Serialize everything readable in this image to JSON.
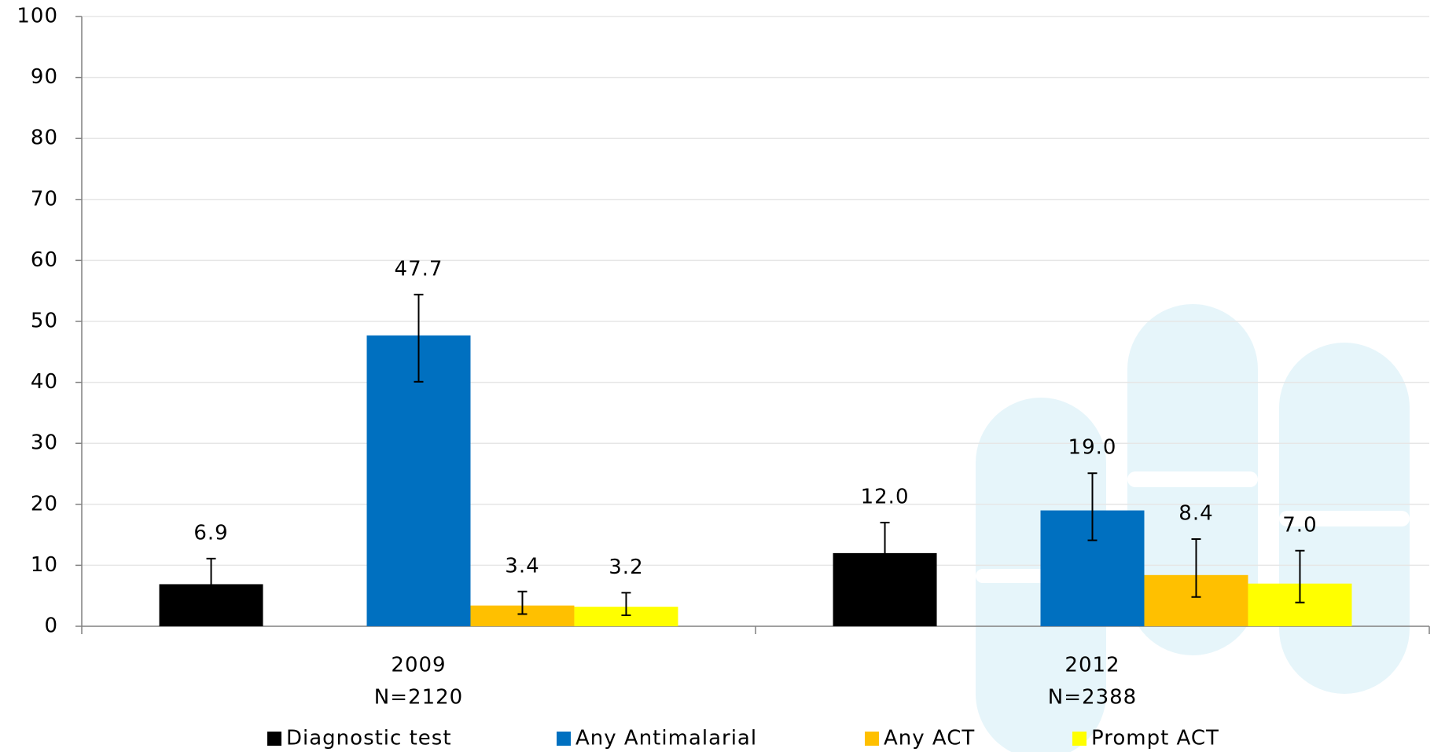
{
  "chart_data": {
    "type": "bar",
    "categories": [
      "2009",
      "2012"
    ],
    "category_sublabels": [
      "N=2120",
      "N=2388"
    ],
    "series": [
      {
        "name": "Diagnostic test",
        "color": "#000000",
        "values": [
          6.9,
          12.0
        ],
        "value_labels": [
          "6.9",
          "12.0"
        ],
        "error_low": [
          4.0,
          7.0
        ],
        "error_high": [
          11.1,
          17.0
        ]
      },
      {
        "name": "Any Antimalarial",
        "color": "#0070c0",
        "values": [
          47.7,
          19.0
        ],
        "value_labels": [
          "47.7",
          "19.0"
        ],
        "error_low": [
          40.1,
          14.1
        ],
        "error_high": [
          54.4,
          25.1
        ]
      },
      {
        "name": "Any ACT",
        "color": "#ffc000",
        "values": [
          3.4,
          8.4
        ],
        "value_labels": [
          "3.4",
          "8.4"
        ],
        "error_low": [
          2.0,
          4.8
        ],
        "error_high": [
          5.7,
          14.3
        ]
      },
      {
        "name": "Prompt ACT",
        "color": "#ffff00",
        "values": [
          3.2,
          7.0
        ],
        "value_labels": [
          "3.2",
          "7.0"
        ],
        "error_low": [
          1.8,
          3.9
        ],
        "error_high": [
          5.5,
          12.4
        ]
      }
    ],
    "ylim": [
      0,
      100
    ],
    "yticks": [
      0,
      10,
      20,
      30,
      40,
      50,
      60,
      70,
      80,
      90,
      100
    ],
    "grid": true,
    "legend": "bottom"
  }
}
